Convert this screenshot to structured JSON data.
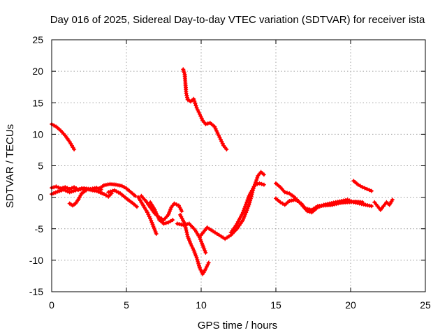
{
  "chart_data": {
    "type": "scatter",
    "title": "Day 016 of 2025, Sidereal Day-to-day VTEC variation (SDTVAR) for receiver ista",
    "xlabel": "GPS time / hours",
    "ylabel": "SDTVAR / TECUs",
    "xlim": [
      0,
      25
    ],
    "ylim": [
      -15,
      25
    ],
    "xticks": [
      0,
      5,
      10,
      15,
      20,
      25
    ],
    "yticks": [
      -15,
      -10,
      -5,
      0,
      5,
      10,
      15,
      20,
      25
    ],
    "grid": true,
    "color": "#ff0000",
    "series": [
      {
        "name": "s1",
        "points": [
          [
            0,
            11.6
          ],
          [
            0.3,
            11.2
          ],
          [
            0.6,
            10.6
          ],
          [
            0.9,
            9.8
          ],
          [
            1.2,
            8.8
          ],
          [
            1.5,
            7.6
          ]
        ]
      },
      {
        "name": "s2",
        "points": [
          [
            0,
            1.5
          ],
          [
            0.3,
            1.7
          ],
          [
            0.6,
            1.4
          ],
          [
            0.9,
            1.6
          ],
          [
            1.2,
            1.3
          ],
          [
            1.5,
            1.6
          ],
          [
            1.8,
            1.2
          ],
          [
            2.2,
            1.4
          ],
          [
            2.6,
            1.3
          ],
          [
            3.0,
            1.5
          ],
          [
            3.3,
            1.2
          ]
        ]
      },
      {
        "name": "s3",
        "points": [
          [
            0,
            0.5
          ],
          [
            0.4,
            0.9
          ],
          [
            0.8,
            1.2
          ],
          [
            1.2,
            0.8
          ],
          [
            1.6,
            1.1
          ],
          [
            2.0,
            1.4
          ],
          [
            2.5,
            1.2
          ],
          [
            3.0,
            1.0
          ],
          [
            3.5,
            0.5
          ],
          [
            3.8,
            0.1
          ],
          [
            4.0,
            0.6
          ]
        ]
      },
      {
        "name": "s4",
        "points": [
          [
            1.2,
            -1.0
          ],
          [
            1.4,
            -1.3
          ],
          [
            1.6,
            -1.0
          ],
          [
            1.8,
            -0.3
          ],
          [
            2.0,
            0.6
          ],
          [
            2.3,
            1.1
          ]
        ]
      },
      {
        "name": "s5",
        "points": [
          [
            3.2,
            1.4
          ],
          [
            3.5,
            1.9
          ],
          [
            3.9,
            2.1
          ],
          [
            4.3,
            2.0
          ],
          [
            4.7,
            1.8
          ],
          [
            5.0,
            1.4
          ],
          [
            5.3,
            0.8
          ],
          [
            5.6,
            0.2
          ]
        ]
      },
      {
        "name": "s6",
        "points": [
          [
            3.8,
            0.8
          ],
          [
            4.2,
            1.1
          ],
          [
            4.6,
            0.6
          ],
          [
            5.0,
            -0.2
          ],
          [
            5.4,
            -0.9
          ],
          [
            5.7,
            -1.5
          ]
        ]
      },
      {
        "name": "s7",
        "points": [
          [
            5.8,
            0.0
          ],
          [
            6.0,
            -0.8
          ],
          [
            6.2,
            -1.6
          ],
          [
            6.4,
            -2.4
          ],
          [
            6.6,
            -3.4
          ],
          [
            6.8,
            -4.6
          ],
          [
            7.0,
            -5.8
          ]
        ]
      },
      {
        "name": "s8",
        "points": [
          [
            6.0,
            0.2
          ],
          [
            6.3,
            -0.6
          ],
          [
            6.6,
            -1.6
          ],
          [
            6.9,
            -2.6
          ],
          [
            7.2,
            -3.2
          ],
          [
            7.5,
            -3.6
          ],
          [
            7.8,
            -2.8
          ],
          [
            8.0,
            -1.6
          ],
          [
            8.2,
            -1.0
          ],
          [
            8.5,
            -1.3
          ],
          [
            8.7,
            -2.2
          ]
        ]
      },
      {
        "name": "s9",
        "points": [
          [
            6.6,
            -0.8
          ],
          [
            6.9,
            -2.0
          ],
          [
            7.2,
            -3.6
          ],
          [
            7.5,
            -4.2
          ],
          [
            7.8,
            -4.0
          ],
          [
            8.1,
            -3.6
          ]
        ]
      },
      {
        "name": "s10",
        "points": [
          [
            8.6,
            -2.8
          ],
          [
            8.9,
            -4.2
          ],
          [
            9.1,
            -6.2
          ],
          [
            9.3,
            -7.4
          ],
          [
            9.5,
            -8.4
          ],
          [
            9.7,
            -9.6
          ],
          [
            9.9,
            -11.2
          ],
          [
            10.1,
            -12.2
          ],
          [
            10.3,
            -11.4
          ],
          [
            10.5,
            -10.4
          ]
        ]
      },
      {
        "name": "s11",
        "points": [
          [
            8.4,
            -4.2
          ],
          [
            8.8,
            -4.4
          ],
          [
            9.2,
            -4.2
          ],
          [
            9.6,
            -5.2
          ],
          [
            9.9,
            -6.4
          ],
          [
            10.1,
            -7.6
          ],
          [
            10.3,
            -8.8
          ]
        ]
      },
      {
        "name": "s12",
        "points": [
          [
            10.0,
            -6.0
          ],
          [
            10.4,
            -4.8
          ],
          [
            10.8,
            -5.4
          ],
          [
            11.2,
            -6.0
          ],
          [
            11.6,
            -6.6
          ],
          [
            12.0,
            -6.0
          ],
          [
            12.4,
            -5.0
          ],
          [
            12.8,
            -3.6
          ],
          [
            13.2,
            -1.2
          ],
          [
            13.5,
            1.4
          ],
          [
            13.8,
            3.4
          ],
          [
            14.0,
            4.0
          ],
          [
            14.2,
            3.6
          ]
        ]
      },
      {
        "name": "s13",
        "points": [
          [
            12.0,
            -5.6
          ],
          [
            12.4,
            -4.2
          ],
          [
            12.8,
            -2.4
          ],
          [
            13.2,
            0.2
          ],
          [
            13.6,
            2.0
          ],
          [
            13.9,
            2.2
          ],
          [
            14.2,
            2.0
          ]
        ]
      },
      {
        "name": "s14",
        "points": [
          [
            8.8,
            20.3
          ],
          [
            8.9,
            19.5
          ],
          [
            8.95,
            18.0
          ],
          [
            9.0,
            16.5
          ],
          [
            9.1,
            15.5
          ],
          [
            9.3,
            15.2
          ],
          [
            9.5,
            15.6
          ],
          [
            9.7,
            14.2
          ],
          [
            9.9,
            13.2
          ],
          [
            10.1,
            12.2
          ],
          [
            10.3,
            11.6
          ],
          [
            10.6,
            11.8
          ],
          [
            10.9,
            11.2
          ],
          [
            11.1,
            10.2
          ],
          [
            11.3,
            9.2
          ],
          [
            11.5,
            8.2
          ],
          [
            11.7,
            7.6
          ]
        ]
      },
      {
        "name": "s15",
        "points": [
          [
            15.0,
            2.2
          ],
          [
            15.3,
            1.6
          ],
          [
            15.6,
            0.8
          ],
          [
            15.9,
            0.6
          ],
          [
            16.2,
            0.1
          ],
          [
            16.5,
            -0.6
          ],
          [
            16.8,
            -1.4
          ],
          [
            17.1,
            -2.2
          ],
          [
            17.4,
            -2.4
          ],
          [
            17.8,
            -1.6
          ],
          [
            18.2,
            -1.2
          ],
          [
            18.6,
            -1.0
          ],
          [
            19.0,
            -0.8
          ],
          [
            19.4,
            -0.6
          ],
          [
            19.8,
            -0.4
          ],
          [
            20.2,
            -0.8
          ],
          [
            20.6,
            -1.0
          ],
          [
            21.0,
            -1.2
          ],
          [
            21.4,
            -1.4
          ]
        ]
      },
      {
        "name": "s16",
        "points": [
          [
            15.0,
            -0.2
          ],
          [
            15.3,
            -0.8
          ],
          [
            15.6,
            -1.2
          ],
          [
            15.9,
            -0.6
          ],
          [
            16.3,
            -0.4
          ],
          [
            16.7,
            -1.0
          ],
          [
            17.0,
            -1.8
          ],
          [
            17.4,
            -2.0
          ],
          [
            17.8,
            -1.4
          ],
          [
            18.3,
            -1.3
          ],
          [
            18.8,
            -1.2
          ],
          [
            19.3,
            -0.9
          ],
          [
            19.8,
            -0.8
          ],
          [
            20.3,
            -0.7
          ],
          [
            20.8,
            -0.8
          ]
        ]
      },
      {
        "name": "s17",
        "points": [
          [
            20.2,
            2.6
          ],
          [
            20.5,
            2.0
          ],
          [
            20.8,
            1.6
          ],
          [
            21.1,
            1.3
          ],
          [
            21.4,
            1.0
          ]
        ]
      },
      {
        "name": "s18",
        "points": [
          [
            21.6,
            -0.8
          ],
          [
            21.8,
            -1.4
          ],
          [
            22.0,
            -2.0
          ],
          [
            22.2,
            -1.4
          ],
          [
            22.4,
            -0.8
          ],
          [
            22.6,
            -1.2
          ],
          [
            22.8,
            -0.4
          ]
        ]
      }
    ]
  }
}
